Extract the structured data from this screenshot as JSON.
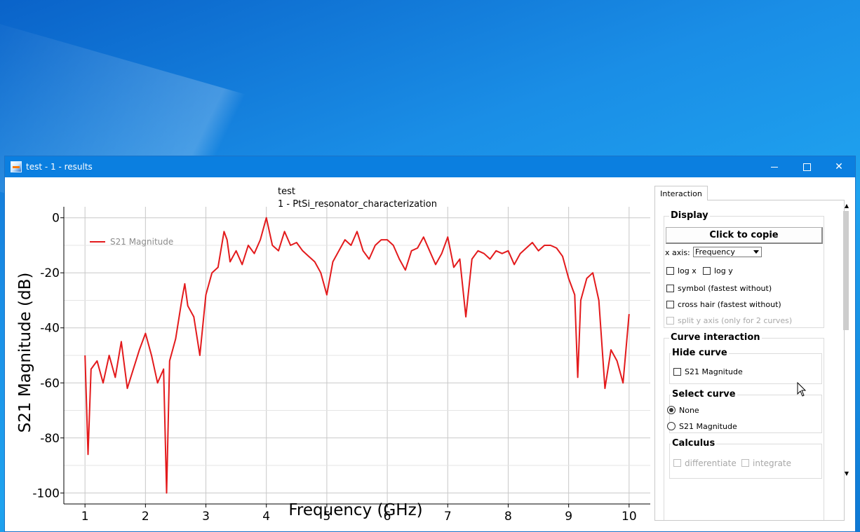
{
  "window": {
    "title": "test - 1 - results"
  },
  "interaction_panel": {
    "tab_label": "Interaction",
    "display": {
      "title": "Display",
      "copy_button": "Click to copie",
      "x_axis_label": "x axis:",
      "x_axis_value": "Frequency",
      "log_x": "log x",
      "log_y": "log y",
      "symbol": "symbol (fastest without)",
      "cross_hair": "cross hair (fastest without)",
      "split_y": "split y axis (only for 2 curves)"
    },
    "curve_interaction": {
      "title": "Curve interaction",
      "hide_curve": {
        "title": "Hide curve",
        "items": [
          "S21 Magnitude"
        ]
      },
      "select_curve": {
        "title": "Select curve",
        "options": [
          "None",
          "S21 Magnitude"
        ],
        "selected": "None"
      },
      "calculus": {
        "title": "Calculus",
        "differentiate": "differentiate",
        "integrate": "integrate"
      }
    }
  },
  "chart_data": {
    "type": "line",
    "title": "test",
    "subtitle": "1 - PtSi_resonator_characterization",
    "xlabel": "Frequency (GHz)",
    "ylabel": "S21 Magnitude (dB)",
    "xlim": [
      0.65,
      10.35
    ],
    "ylim": [
      -104,
      4
    ],
    "xticks": [
      1,
      2,
      3,
      4,
      5,
      6,
      7,
      8,
      9,
      10
    ],
    "yticks": [
      0,
      -20,
      -40,
      -60,
      -80,
      -100
    ],
    "grid": true,
    "legend_position": "top-left",
    "series": [
      {
        "name": "S21 Magnitude",
        "color": "#e31a1c",
        "x": [
          1.0,
          1.05,
          1.1,
          1.2,
          1.3,
          1.4,
          1.5,
          1.6,
          1.7,
          1.8,
          1.9,
          2.0,
          2.1,
          2.2,
          2.3,
          2.35,
          2.4,
          2.5,
          2.6,
          2.65,
          2.7,
          2.8,
          2.9,
          3.0,
          3.1,
          3.2,
          3.3,
          3.35,
          3.4,
          3.5,
          3.6,
          3.7,
          3.8,
          3.9,
          4.0,
          4.1,
          4.2,
          4.3,
          4.4,
          4.5,
          4.6,
          4.7,
          4.8,
          4.9,
          5.0,
          5.1,
          5.2,
          5.3,
          5.4,
          5.5,
          5.6,
          5.7,
          5.8,
          5.9,
          6.0,
          6.1,
          6.2,
          6.3,
          6.4,
          6.5,
          6.6,
          6.7,
          6.8,
          6.9,
          7.0,
          7.1,
          7.2,
          7.3,
          7.4,
          7.5,
          7.6,
          7.7,
          7.8,
          7.9,
          8.0,
          8.1,
          8.2,
          8.3,
          8.4,
          8.5,
          8.6,
          8.7,
          8.8,
          8.9,
          9.0,
          9.1,
          9.15,
          9.2,
          9.3,
          9.4,
          9.5,
          9.6,
          9.7,
          9.8,
          9.9,
          10.0
        ],
        "y": [
          -50,
          -86,
          -55,
          -52,
          -60,
          -50,
          -58,
          -45,
          -62,
          -55,
          -48,
          -42,
          -50,
          -60,
          -55,
          -100,
          -52,
          -44,
          -30,
          -24,
          -32,
          -36,
          -50,
          -28,
          -20,
          -18,
          -5,
          -8,
          -16,
          -12,
          -17,
          -10,
          -13,
          -8,
          0,
          -10,
          -12,
          -5,
          -10,
          -9,
          -12,
          -14,
          -16,
          -20,
          -28,
          -16,
          -12,
          -8,
          -10,
          -5,
          -12,
          -15,
          -10,
          -8,
          -8,
          -10,
          -15,
          -19,
          -12,
          -11,
          -7,
          -12,
          -17,
          -13,
          -7,
          -18,
          -15,
          -36,
          -15,
          -12,
          -13,
          -15,
          -12,
          -13,
          -12,
          -17,
          -13,
          -11,
          -9,
          -12,
          -10,
          -10,
          -11,
          -14,
          -22,
          -28,
          -58,
          -30,
          -22,
          -20,
          -30,
          -62,
          -48,
          -52,
          -60,
          -35
        ]
      }
    ]
  }
}
